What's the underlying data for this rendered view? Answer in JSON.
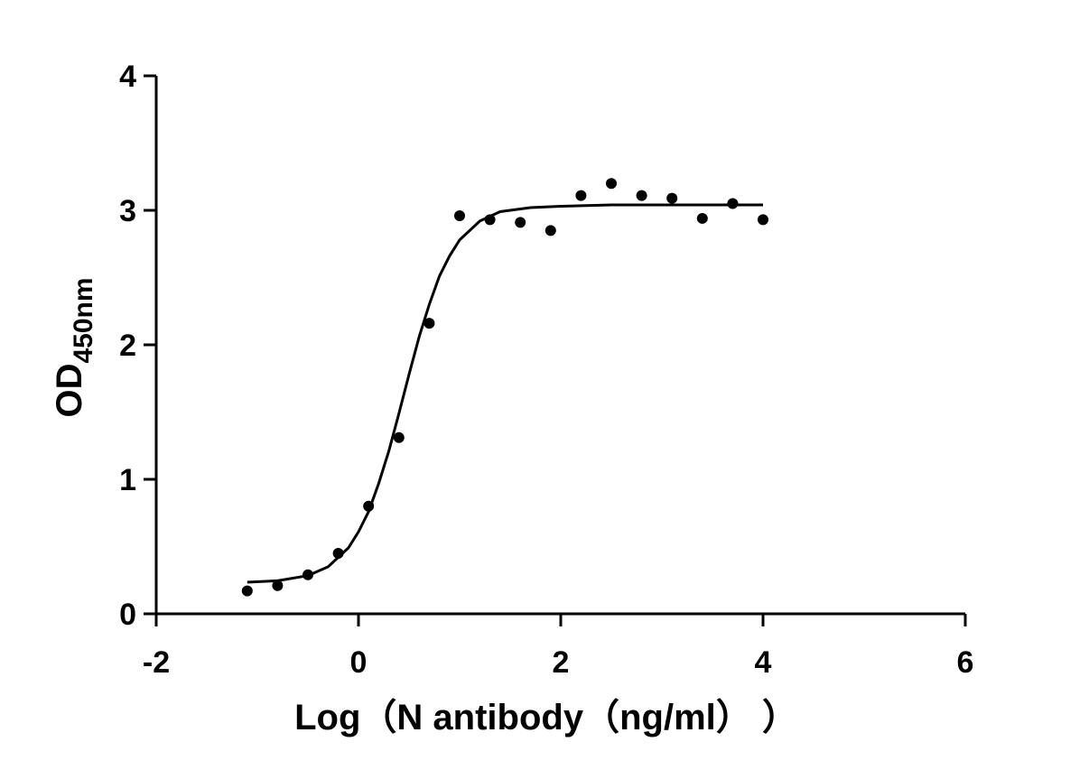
{
  "chart_data": {
    "type": "scatter",
    "x_label": "Log（N antibody（ng/ml）  ）",
    "y_label": {
      "text": "OD",
      "subscript": "450nm"
    },
    "xlim": [
      -2,
      6
    ],
    "xticks": [
      -2,
      0,
      2,
      4,
      6
    ],
    "ylim": [
      0,
      4
    ],
    "yticks": [
      0,
      1,
      2,
      3,
      4
    ],
    "series": [
      {
        "style": "dot",
        "color": "#000000",
        "x": [
          -1.1,
          -0.8,
          -0.5,
          -0.2,
          0.1,
          0.4,
          0.7,
          1.0,
          1.3,
          1.6,
          1.9,
          2.2,
          2.5,
          2.8,
          3.1,
          3.4,
          3.7,
          4.0
        ],
        "values": [
          0.17,
          0.21,
          0.29,
          0.45,
          0.8,
          1.31,
          2.16,
          2.96,
          2.93,
          2.91,
          2.85,
          3.11,
          3.2,
          3.11,
          3.09,
          2.94,
          3.05,
          2.93
        ]
      },
      {
        "style": "line",
        "color": "#000000",
        "x": [
          -1.1,
          -0.8,
          -0.5,
          -0.3,
          -0.1,
          0,
          0.1,
          0.2,
          0.3,
          0.4,
          0.5,
          0.6,
          0.7,
          0.8,
          0.9,
          1.0,
          1.2,
          1.4,
          1.7,
          2.0,
          2.5,
          3.0,
          4.0
        ],
        "values": [
          0.235,
          0.246,
          0.284,
          0.35,
          0.49,
          0.61,
          0.76,
          0.97,
          1.21,
          1.49,
          1.78,
          2.06,
          2.3,
          2.51,
          2.66,
          2.78,
          2.92,
          2.99,
          3.02,
          3.03,
          3.04,
          3.04,
          3.04
        ]
      }
    ]
  }
}
